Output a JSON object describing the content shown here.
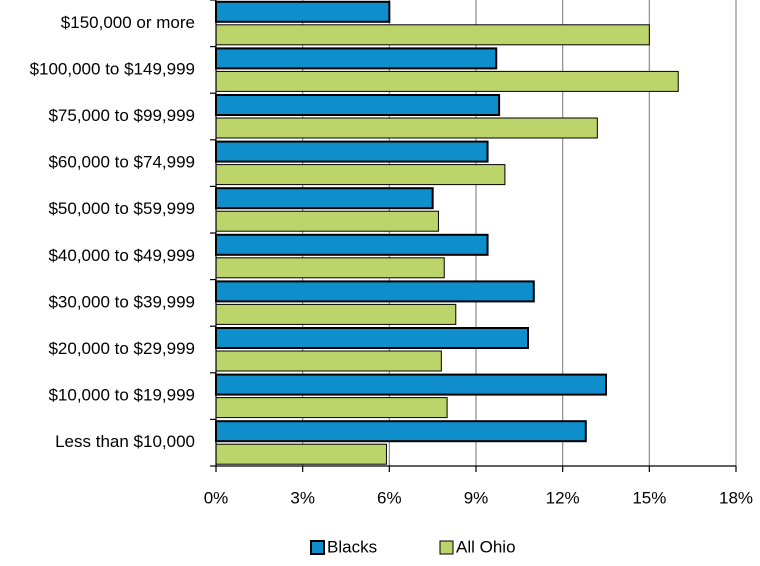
{
  "chart_data": {
    "type": "bar",
    "orientation": "horizontal",
    "categories": [
      "$150,000 or more",
      "$100,000 to $149,999",
      "$75,000 to $99,999",
      "$60,000 to $74,999",
      "$50,000 to $59,999",
      "$40,000 to $49,999",
      "$30,000 to $39,999",
      "$20,000 to $29,999",
      "$10,000 to $19,999",
      "Less than $10,000"
    ],
    "series": [
      {
        "name": "Blacks",
        "color": "#0e8fcc",
        "values": [
          6.0,
          9.7,
          9.8,
          9.4,
          7.5,
          9.4,
          11.0,
          10.8,
          13.5,
          12.8
        ]
      },
      {
        "name": "All Ohio",
        "color": "#bcd46a",
        "values": [
          15.0,
          16.0,
          13.2,
          10.0,
          7.7,
          7.9,
          8.3,
          7.8,
          8.0,
          5.9
        ]
      }
    ],
    "xlim": [
      0,
      18
    ],
    "xticks": [
      0,
      3,
      6,
      9,
      12,
      15,
      18
    ],
    "tick_labels": [
      "0%",
      "3%",
      "6%",
      "9%",
      "12%",
      "15%",
      "18%"
    ],
    "title": "",
    "xlabel": "",
    "ylabel": "",
    "grid": "vertical",
    "legend": "bottom"
  }
}
